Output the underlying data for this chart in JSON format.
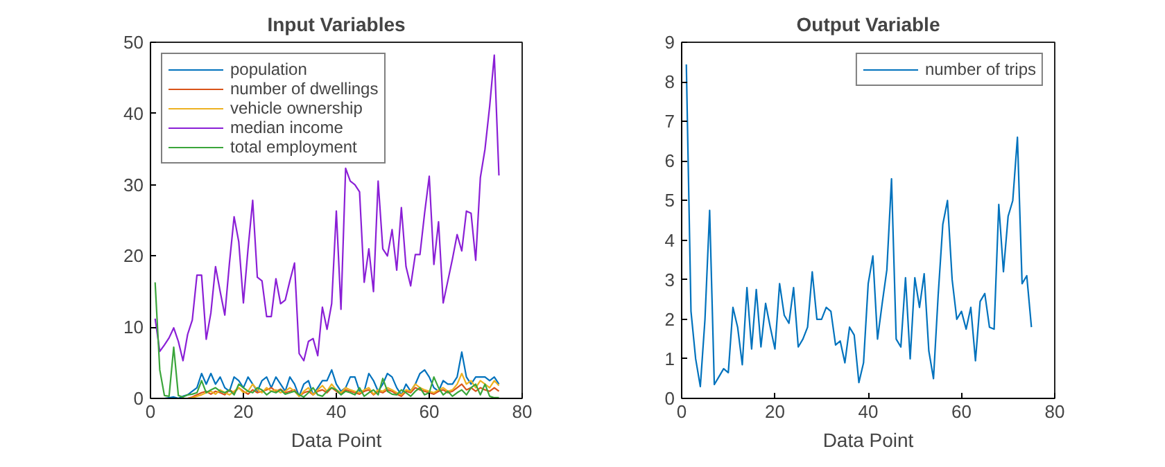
{
  "chart_data": [
    {
      "type": "line",
      "title": "Input Variables",
      "xlabel": "Data Point",
      "x": [
        1,
        2,
        3,
        4,
        5,
        6,
        7,
        8,
        9,
        10,
        11,
        12,
        13,
        14,
        15,
        16,
        17,
        18,
        19,
        20,
        21,
        22,
        23,
        24,
        25,
        26,
        27,
        28,
        29,
        30,
        31,
        32,
        33,
        34,
        35,
        36,
        37,
        38,
        39,
        40,
        41,
        42,
        43,
        44,
        45,
        46,
        47,
        48,
        49,
        50,
        51,
        52,
        53,
        54,
        55,
        56,
        57,
        58,
        59,
        60,
        61,
        62,
        63,
        64,
        65,
        66,
        67,
        68,
        69,
        70,
        71,
        72,
        73,
        74,
        75
      ],
      "xlim": [
        0,
        80
      ],
      "xticks": [
        0,
        20,
        40,
        60,
        80
      ],
      "ylim": [
        0,
        50
      ],
      "yticks": [
        0,
        10,
        20,
        30,
        40,
        50
      ],
      "grid": false,
      "legend": "top left",
      "series": [
        {
          "name": "population",
          "color": "#0072bd",
          "values": [
            0,
            0,
            0,
            0.1,
            0.2,
            0,
            0.3,
            0.5,
            1.0,
            1.5,
            3.5,
            2.0,
            3.5,
            2.0,
            3.0,
            1.5,
            1.0,
            3.0,
            2.5,
            1.5,
            3.0,
            2.0,
            1.0,
            2.5,
            3.0,
            1.5,
            3.0,
            2.0,
            1.0,
            3.0,
            2.0,
            0.3,
            2.0,
            2.5,
            0.5,
            1.5,
            2.5,
            2.5,
            4.0,
            2.0,
            1.0,
            1.5,
            3.0,
            3.0,
            1.0,
            1.0,
            3.5,
            2.5,
            1.0,
            2.0,
            3.5,
            3.0,
            1.5,
            0.5,
            2.0,
            1.0,
            2.0,
            3.5,
            4.0,
            3.0,
            1.5,
            1.0,
            2.5,
            2.0,
            2.0,
            3.0,
            6.5,
            3.0,
            2.0,
            3.0,
            3.0,
            3.0,
            2.5,
            3.0,
            2.0
          ]
        },
        {
          "name": "number of dwellings",
          "color": "#d95319",
          "values": [
            null,
            null,
            null,
            null,
            null,
            0,
            0,
            0,
            0.2,
            0.5,
            0.8,
            1.0,
            0.6,
            1.0,
            0.8,
            0.5,
            1.2,
            0.8,
            1.5,
            1.0,
            0.6,
            1.2,
            0.8,
            1.0,
            1.2,
            1.5,
            1.0,
            1.3,
            0.8,
            1.0,
            1.2,
            0.3,
            0.8,
            1.0,
            0.5,
            1.0,
            1.2,
            0.8,
            1.5,
            1.0,
            0.6,
            1.2,
            1.0,
            0.8,
            0.6,
            1.0,
            1.2,
            0.5,
            1.0,
            0.8,
            1.2,
            1.0,
            0.6,
            0.3,
            1.0,
            0.8,
            1.5,
            1.2,
            1.0,
            0.8,
            0.6,
            1.0,
            1.2,
            0.8,
            1.0,
            1.5,
            2.0,
            1.2,
            1.5,
            1.0,
            1.5,
            1.2,
            1.0,
            1.5,
            1.0
          ]
        },
        {
          "name": "vehicle ownership",
          "color": "#edb120",
          "values": [
            null,
            null,
            null,
            null,
            null,
            null,
            0,
            0,
            0.1,
            0.3,
            0.5,
            0.8,
            1.0,
            0.6,
            1.2,
            0.8,
            0.5,
            1.0,
            1.5,
            0.8,
            1.0,
            2.0,
            1.2,
            0.8,
            1.5,
            1.0,
            1.2,
            0.8,
            1.0,
            1.5,
            1.0,
            0.3,
            1.0,
            1.5,
            0.5,
            1.2,
            1.8,
            1.0,
            2.0,
            1.2,
            0.8,
            1.5,
            1.2,
            1.0,
            0.8,
            1.2,
            1.5,
            0.6,
            1.2,
            1.0,
            1.5,
            1.2,
            0.8,
            0.5,
            1.2,
            1.0,
            2.0,
            1.5,
            1.2,
            1.0,
            0.8,
            1.2,
            1.5,
            1.0,
            1.2,
            2.0,
            3.5,
            2.0,
            2.5,
            1.5,
            2.5,
            2.0,
            1.5,
            2.5,
            1.8
          ]
        },
        {
          "name": "median income",
          "color": "#8a1fd6",
          "values": [
            11.2,
            6.6,
            7.5,
            8.5,
            9.9,
            8.0,
            5.3,
            9.0,
            11.0,
            17.3,
            17.3,
            8.3,
            12.0,
            18.5,
            15.0,
            11.7,
            19.0,
            25.5,
            22.0,
            13.4,
            21.0,
            27.8,
            17.0,
            16.5,
            11.5,
            11.5,
            16.8,
            13.3,
            13.8,
            16.5,
            19.0,
            6.3,
            5.3,
            8.0,
            8.4,
            6.0,
            12.8,
            9.7,
            13.3,
            26.3,
            12.5,
            32.3,
            30.5,
            30.0,
            29.0,
            16.3,
            21.0,
            15.0,
            30.5,
            21.0,
            20.0,
            23.7,
            18.0,
            26.8,
            18.5,
            15.8,
            20.2,
            20.2,
            26.0,
            31.2,
            18.8,
            24.8,
            13.4,
            16.5,
            19.6,
            23.0,
            20.7,
            26.3,
            26.0,
            19.4,
            31.0,
            35.0,
            41.0,
            48.2,
            31.3
          ]
        },
        {
          "name": "total employment",
          "color": "#3aa53a",
          "values": [
            16.3,
            4.0,
            0.4,
            0.3,
            7.2,
            0.4,
            0.2,
            0.5,
            0.6,
            0.8,
            2.5,
            0.8,
            1.2,
            1.5,
            1.0,
            0.8,
            1.2,
            0.5,
            2.0,
            1.5,
            1.0,
            0.8,
            1.5,
            1.2,
            0.5,
            1.0,
            0.8,
            1.2,
            0.6,
            0.8,
            1.0,
            0.5,
            0.2,
            0.8,
            1.5,
            0.5,
            0.3,
            1.0,
            1.5,
            1.2,
            0.5,
            1.0,
            0.8,
            0.5,
            1.5,
            0.3,
            0.8,
            1.2,
            0.5,
            2.8,
            1.0,
            0.6,
            0.5,
            1.2,
            0.8,
            0.3,
            1.0,
            1.5,
            0.5,
            0.8,
            3.0,
            1.5,
            0.5,
            1.0,
            0.3,
            0.8,
            1.2,
            0.5,
            1.5,
            2.0,
            0.5,
            2.0,
            0.3,
            0.1,
            0.1
          ]
        }
      ]
    },
    {
      "type": "line",
      "title": "Output Variable",
      "xlabel": "Data Point",
      "x": [
        1,
        2,
        3,
        4,
        5,
        6,
        7,
        8,
        9,
        10,
        11,
        12,
        13,
        14,
        15,
        16,
        17,
        18,
        19,
        20,
        21,
        22,
        23,
        24,
        25,
        26,
        27,
        28,
        29,
        30,
        31,
        32,
        33,
        34,
        35,
        36,
        37,
        38,
        39,
        40,
        41,
        42,
        43,
        44,
        45,
        46,
        47,
        48,
        49,
        50,
        51,
        52,
        53,
        54,
        55,
        56,
        57,
        58,
        59,
        60,
        61,
        62,
        63,
        64,
        65,
        66,
        67,
        68,
        69,
        70,
        71,
        72,
        73,
        74,
        75
      ],
      "xlim": [
        0,
        80
      ],
      "xticks": [
        0,
        20,
        40,
        60,
        80
      ],
      "ylim": [
        0,
        9
      ],
      "yticks": [
        0,
        1,
        2,
        3,
        4,
        5,
        6,
        7,
        8,
        9
      ],
      "grid": false,
      "legend": "top right",
      "series": [
        {
          "name": "number of trips",
          "color": "#0072bd",
          "values": [
            8.44,
            2.2,
            1.0,
            0.3,
            2.0,
            4.75,
            0.35,
            0.55,
            0.75,
            0.65,
            2.3,
            1.8,
            0.85,
            2.8,
            1.25,
            2.75,
            1.3,
            2.4,
            1.8,
            1.25,
            2.9,
            2.1,
            1.9,
            2.8,
            1.3,
            1.5,
            1.8,
            3.2,
            2.0,
            2.0,
            2.3,
            2.2,
            1.35,
            1.45,
            0.9,
            1.8,
            1.6,
            0.4,
            0.9,
            2.9,
            3.6,
            1.5,
            2.4,
            3.25,
            5.55,
            1.5,
            1.3,
            3.05,
            1.0,
            3.05,
            2.3,
            3.15,
            1.2,
            0.5,
            2.6,
            4.4,
            5.0,
            3.0,
            2.0,
            2.2,
            1.75,
            2.3,
            0.95,
            2.45,
            2.65,
            1.8,
            1.75,
            4.9,
            3.2,
            4.6,
            5.0,
            6.6,
            2.9,
            3.1,
            1.8
          ]
        }
      ]
    }
  ]
}
